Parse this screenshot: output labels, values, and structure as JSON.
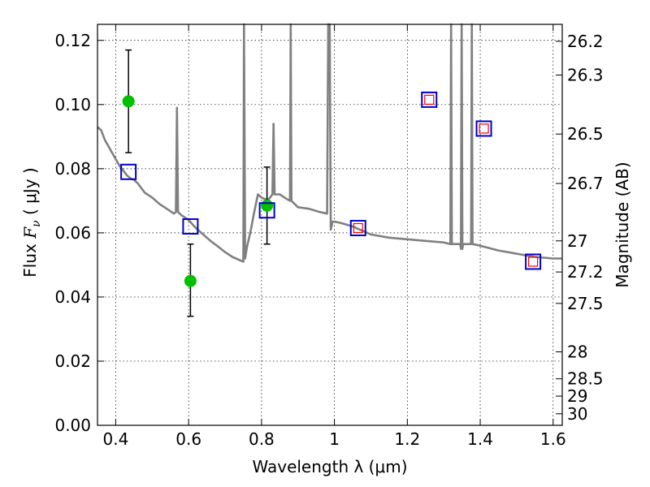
{
  "chart_data": {
    "type": "scatter",
    "xlabel": "Wavelength  λ (μm)",
    "ylabel_left": {
      "prefix": "Flux  ",
      "symbol": "F",
      "subscript": "ν",
      "suffix": "  ( μJy )"
    },
    "ylabel_right": "Magnitude (AB)",
    "xlim": [
      0.35,
      1.625
    ],
    "ylim": [
      0.0,
      0.125
    ],
    "grid": true,
    "x_ticks": [
      {
        "value": 0.4,
        "label": "0.4"
      },
      {
        "value": 0.6,
        "label": "0.6"
      },
      {
        "value": 0.8,
        "label": "0.8"
      },
      {
        "value": 1.0,
        "label": "1"
      },
      {
        "value": 1.2,
        "label": "1.2"
      },
      {
        "value": 1.4,
        "label": "1.4"
      },
      {
        "value": 1.6,
        "label": "1.6"
      }
    ],
    "y_ticks": [
      {
        "value": 0.0,
        "label": "0.00"
      },
      {
        "value": 0.02,
        "label": "0.02"
      },
      {
        "value": 0.04,
        "label": "0.04"
      },
      {
        "value": 0.06,
        "label": "0.06"
      },
      {
        "value": 0.08,
        "label": "0.08"
      },
      {
        "value": 0.1,
        "label": "0.10"
      },
      {
        "value": 0.12,
        "label": "0.12"
      }
    ],
    "right_ticks": [
      {
        "flux": 0.1197,
        "label": "26.2"
      },
      {
        "flux": 0.1092,
        "label": "26.3"
      },
      {
        "flux": 0.0908,
        "label": "26.5"
      },
      {
        "flux": 0.0754,
        "label": "26.7"
      },
      {
        "flux": 0.0575,
        "label": "27"
      },
      {
        "flux": 0.0478,
        "label": "27.2"
      },
      {
        "flux": 0.038,
        "label": "27.5"
      },
      {
        "flux": 0.0229,
        "label": "28"
      },
      {
        "flux": 0.0145,
        "label": "28.5"
      },
      {
        "flux": 0.0091,
        "label": "29"
      },
      {
        "flux": 0.0036,
        "label": "30"
      }
    ],
    "series": [
      {
        "kind": "line",
        "color": "#808080",
        "points": [
          [
            0.35,
            0.093
          ],
          [
            0.36,
            0.092
          ],
          [
            0.37,
            0.089
          ],
          [
            0.38,
            0.087
          ],
          [
            0.39,
            0.085
          ],
          [
            0.4,
            0.083
          ],
          [
            0.41,
            0.081
          ],
          [
            0.42,
            0.0795
          ],
          [
            0.43,
            0.078
          ],
          [
            0.44,
            0.077
          ],
          [
            0.45,
            0.0765
          ],
          [
            0.46,
            0.0755
          ],
          [
            0.47,
            0.074
          ],
          [
            0.48,
            0.0725
          ],
          [
            0.5,
            0.071
          ],
          [
            0.52,
            0.069
          ],
          [
            0.54,
            0.0675
          ],
          [
            0.56,
            0.066
          ],
          [
            0.565,
            0.0665
          ],
          [
            0.568,
            0.099
          ],
          [
            0.571,
            0.0665
          ],
          [
            0.58,
            0.0655
          ],
          [
            0.6,
            0.064
          ],
          [
            0.62,
            0.0615
          ],
          [
            0.64,
            0.0595
          ],
          [
            0.66,
            0.0575
          ],
          [
            0.68,
            0.0558
          ],
          [
            0.7,
            0.054
          ],
          [
            0.72,
            0.0525
          ],
          [
            0.74,
            0.0515
          ],
          [
            0.75,
            0.051
          ],
          [
            0.752,
            0.125
          ],
          [
            0.755,
            0.052
          ],
          [
            0.76,
            0.0555
          ],
          [
            0.77,
            0.0605
          ],
          [
            0.78,
            0.0665
          ],
          [
            0.79,
            0.072
          ],
          [
            0.8,
            0.071
          ],
          [
            0.81,
            0.0705
          ],
          [
            0.82,
            0.0705
          ],
          [
            0.83,
            0.072
          ],
          [
            0.833,
            0.094
          ],
          [
            0.836,
            0.072
          ],
          [
            0.85,
            0.072
          ],
          [
            0.87,
            0.0705
          ],
          [
            0.878,
            0.07
          ],
          [
            0.88,
            0.125
          ],
          [
            0.882,
            0.07
          ],
          [
            0.9,
            0.068
          ],
          [
            0.93,
            0.0675
          ],
          [
            0.96,
            0.0665
          ],
          [
            0.98,
            0.066
          ],
          [
            0.983,
            0.125
          ],
          [
            0.987,
            0.125
          ],
          [
            0.99,
            0.061
          ],
          [
            0.995,
            0.0635
          ],
          [
            1.0,
            0.0635
          ],
          [
            1.02,
            0.063
          ],
          [
            1.05,
            0.062
          ],
          [
            1.08,
            0.0605
          ],
          [
            1.1,
            0.0595
          ],
          [
            1.15,
            0.0585
          ],
          [
            1.2,
            0.058
          ],
          [
            1.25,
            0.0575
          ],
          [
            1.3,
            0.057
          ],
          [
            1.318,
            0.0565
          ],
          [
            1.32,
            0.125
          ],
          [
            1.322,
            0.0565
          ],
          [
            1.345,
            0.0565
          ],
          [
            1.347,
            0.055
          ],
          [
            1.349,
            0.125
          ],
          [
            1.351,
            0.055
          ],
          [
            1.353,
            0.0565
          ],
          [
            1.375,
            0.0565
          ],
          [
            1.377,
            0.125
          ],
          [
            1.379,
            0.0565
          ],
          [
            1.4,
            0.056
          ],
          [
            1.45,
            0.0545
          ],
          [
            1.5,
            0.0535
          ],
          [
            1.55,
            0.0525
          ],
          [
            1.6,
            0.052
          ],
          [
            1.625,
            0.052
          ]
        ]
      },
      {
        "kind": "points",
        "marker": "circle",
        "color": "#00c000",
        "points": [
          {
            "x": 0.435,
            "y": 0.101,
            "yerr_low": 0.085,
            "yerr_high": 0.117
          },
          {
            "x": 0.605,
            "y": 0.045,
            "yerr_low": 0.034,
            "yerr_high": 0.0565
          },
          {
            "x": 0.815,
            "y": 0.0685,
            "yerr_low": 0.0565,
            "yerr_high": 0.0805
          }
        ]
      },
      {
        "kind": "points",
        "marker": "square",
        "color": "#0000cc",
        "points": [
          {
            "x": 0.435,
            "y": 0.079
          },
          {
            "x": 0.605,
            "y": 0.062
          },
          {
            "x": 0.815,
            "y": 0.067
          },
          {
            "x": 1.065,
            "y": 0.0615
          },
          {
            "x": 1.26,
            "y": 0.1015
          },
          {
            "x": 1.41,
            "y": 0.0925
          },
          {
            "x": 1.545,
            "y": 0.051
          }
        ]
      },
      {
        "kind": "points",
        "marker": "small-square",
        "color": "#ff0000",
        "points": [
          {
            "x": 1.065,
            "y": 0.0615
          },
          {
            "x": 1.26,
            "y": 0.1015
          },
          {
            "x": 1.41,
            "y": 0.0925
          },
          {
            "x": 1.545,
            "y": 0.051
          }
        ]
      }
    ]
  }
}
